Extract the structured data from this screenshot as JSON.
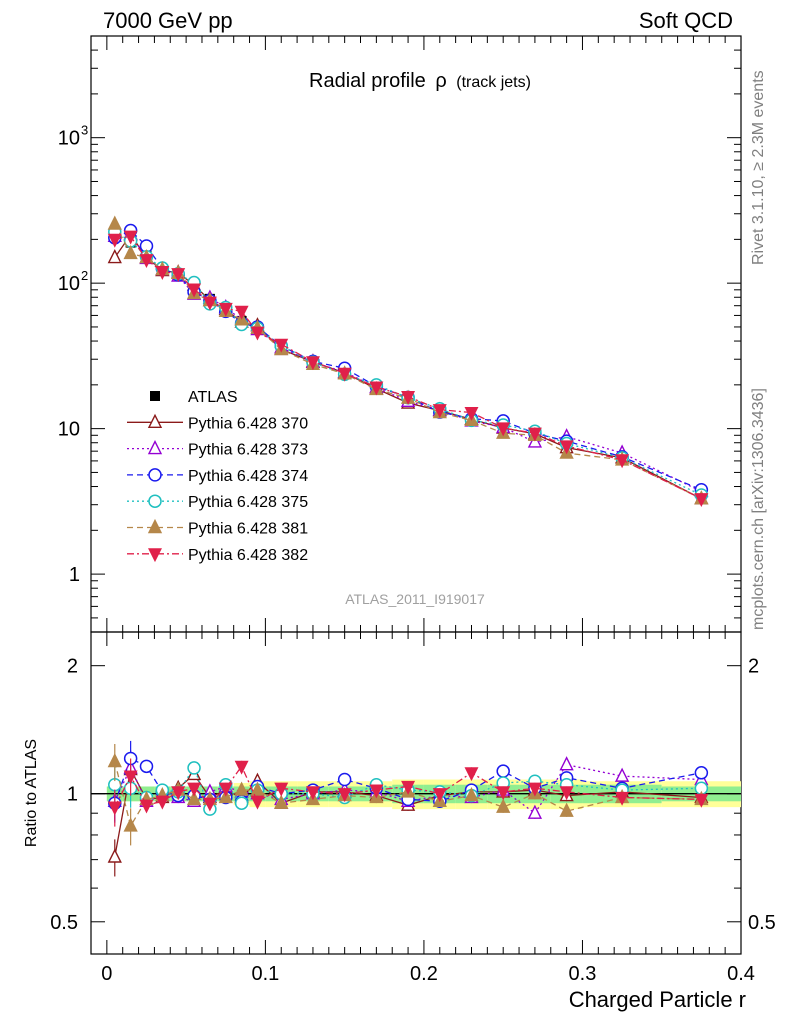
{
  "header": {
    "left": "7000 GeV pp",
    "right": "Soft QCD"
  },
  "side_text": {
    "rivet": "Rivet 3.1.10, ≥ 2.3M events",
    "mcplots": "mcplots.cern.ch [arXiv:1306.3436]"
  },
  "colors": {
    "ATLAS": "#000000",
    "370": "#8b1a1a",
    "373": "#9400d3",
    "374": "#1a1aee",
    "375": "#20c0c0",
    "381": "#b5874a",
    "382": "#e0204a",
    "band_inner": "#90ee90",
    "band_outer": "#ffff99"
  },
  "chart_data": [
    {
      "type": "scatter",
      "title": "Radial profile",
      "title_symbol": "ρ",
      "title_suffix": "(track jets)",
      "analysis_label": "ATLAS_2011_I919017",
      "yscale": "log",
      "xlim": [
        -0.01,
        0.4
      ],
      "ylim": [
        0.4,
        5000
      ],
      "ytick_labels": [
        "1",
        "10",
        "10²",
        "10³"
      ],
      "legend_position": "left-center",
      "x": [
        0.005,
        0.015,
        0.025,
        0.035,
        0.045,
        0.055,
        0.065,
        0.075,
        0.085,
        0.095,
        0.11,
        0.13,
        0.15,
        0.17,
        0.19,
        0.21,
        0.23,
        0.25,
        0.27,
        0.29,
        0.325,
        0.375
      ],
      "series": [
        {
          "name": "ATLAS",
          "style": "data",
          "values": [
            215,
            190,
            155,
            125,
            115,
            88,
            78,
            65,
            55,
            48,
            37,
            28.5,
            24,
            19,
            16,
            13.5,
            11.5,
            10,
            9,
            7.5,
            6.2,
            3.4
          ]
        },
        {
          "name": "Pythia 6.428 370",
          "style": "solid",
          "marker": "tri-up-open",
          "values": [
            150,
            215,
            150,
            122,
            118,
            97,
            76,
            66,
            54,
            51,
            35,
            28.8,
            24.2,
            18.8,
            15,
            13.3,
            11.6,
            10.1,
            9.2,
            7.4,
            6.3,
            3.3
          ]
        },
        {
          "name": "Pythia 6.428 373",
          "style": "dotted",
          "marker": "tri-up-open",
          "values": [
            210,
            218,
            148,
            124,
            112,
            84,
            79,
            68,
            56,
            48,
            36,
            28.6,
            24.5,
            19.2,
            15.4,
            13.4,
            11.3,
            10.2,
            8.1,
            8.8,
            6.8,
            3.7
          ]
        },
        {
          "name": "Pythia 6.428 374",
          "style": "dashed",
          "marker": "circle-open",
          "values": [
            205,
            230,
            180,
            126,
            114,
            87,
            76,
            64,
            53,
            50,
            37,
            29,
            26,
            19.5,
            16.4,
            13,
            11.7,
            11.3,
            9.3,
            8.2,
            6.4,
            3.8
          ]
        },
        {
          "name": "Pythia 6.428 375",
          "style": "dotted",
          "marker": "circle-open",
          "values": [
            225,
            195,
            152,
            127,
            116,
            101,
            72,
            68,
            52,
            49,
            37,
            28.6,
            23.6,
            20,
            16.3,
            13.7,
            11.4,
            10.6,
            9.6,
            7.9,
            6.3,
            3.5
          ]
        },
        {
          "name": "Pythia 6.428 381",
          "style": "dashed",
          "marker": "tri-up-filled",
          "values": [
            255,
            160,
            150,
            124,
            117,
            85,
            76,
            64,
            56,
            49,
            35,
            27.7,
            23.8,
            18.6,
            16.2,
            12.9,
            11.4,
            9.3,
            9,
            6.8,
            6.1,
            3.3
          ]
        },
        {
          "name": "Pythia 6.428 382",
          "style": "dashdot",
          "marker": "tri-down-filled",
          "values": [
            200,
            210,
            145,
            120,
            116,
            91,
            74,
            67,
            64,
            46,
            38,
            28.8,
            24,
            19.3,
            16.6,
            13.5,
            12.9,
            10.1,
            9.3,
            7.6,
            6.1,
            3.3
          ]
        }
      ]
    },
    {
      "type": "scatter",
      "ylabel": "Ratio to ATLAS",
      "xlabel": "Charged Particle r",
      "yscale": "log",
      "xlim": [
        -0.01,
        0.4
      ],
      "ylim": [
        0.42,
        2.4
      ],
      "ytick_labels": [
        "0.5",
        "1",
        "2"
      ],
      "xtick_labels": [
        "0",
        "0.1",
        "0.2",
        "0.3",
        "0.4"
      ],
      "reference_line": 1,
      "bands": {
        "inner_half_width": [
          0.04,
          0.04,
          0.04,
          0.04,
          0.04,
          0.04,
          0.04,
          0.04,
          0.04,
          0.04,
          0.04,
          0.04,
          0.04,
          0.04,
          0.05,
          0.05,
          0.05,
          0.05,
          0.05,
          0.05,
          0.05,
          0.04
        ],
        "outer_half_width": [
          0.04,
          0.04,
          0.04,
          0.04,
          0.04,
          0.04,
          0.04,
          0.04,
          0.06,
          0.07,
          0.07,
          0.07,
          0.07,
          0.07,
          0.08,
          0.08,
          0.08,
          0.08,
          0.08,
          0.08,
          0.07,
          0.07
        ]
      },
      "series": [
        {
          "name": "Pythia 6.428 370",
          "values": [
            0.71,
            1.14,
            0.97,
            0.98,
            1.03,
            1.11,
            0.98,
            1.02,
            0.98,
            1.07,
            0.95,
            1.01,
            1.01,
            0.99,
            0.94,
            0.99,
            1.01,
            1.01,
            1.02,
            0.99,
            1.01,
            0.98
          ]
        },
        {
          "name": "Pythia 6.428 373",
          "values": [
            0.96,
            1.15,
            0.96,
            0.99,
            0.98,
            0.96,
            1.01,
            1.04,
            1.01,
            1.0,
            0.97,
            1.0,
            1.02,
            1.01,
            0.96,
            0.99,
            0.98,
            1.02,
            0.9,
            1.17,
            1.1,
            1.08
          ]
        },
        {
          "name": "Pythia 6.428 374",
          "values": [
            0.95,
            1.21,
            1.16,
            1.01,
            0.99,
            0.99,
            0.97,
            0.98,
            0.96,
            1.04,
            1.0,
            1.02,
            1.08,
            1.03,
            0.97,
            0.96,
            1.02,
            1.13,
            1.03,
            1.09,
            1.03,
            1.12
          ]
        },
        {
          "name": "Pythia 6.428 375",
          "values": [
            1.05,
            1.03,
            0.98,
            1.02,
            1.01,
            1.15,
            0.92,
            1.05,
            0.95,
            1.02,
            1.0,
            1.0,
            0.98,
            1.05,
            1.02,
            1.01,
            0.99,
            1.06,
            1.07,
            1.05,
            1.02,
            1.03
          ]
        },
        {
          "name": "Pythia 6.428 381",
          "values": [
            1.19,
            0.84,
            0.97,
            0.99,
            1.02,
            0.97,
            0.97,
            0.98,
            1.02,
            1.02,
            0.95,
            0.97,
            0.99,
            0.98,
            1.01,
            0.96,
            0.99,
            0.93,
            1.0,
            0.91,
            0.98,
            0.97
          ]
        },
        {
          "name": "Pythia 6.428 382",
          "values": [
            0.93,
            1.1,
            0.94,
            0.96,
            1.01,
            1.03,
            0.95,
            1.03,
            1.16,
            0.96,
            1.03,
            1.01,
            1.0,
            1.02,
            1.04,
            1.0,
            1.12,
            1.01,
            1.03,
            1.01,
            0.98,
            0.97
          ]
        }
      ]
    }
  ]
}
